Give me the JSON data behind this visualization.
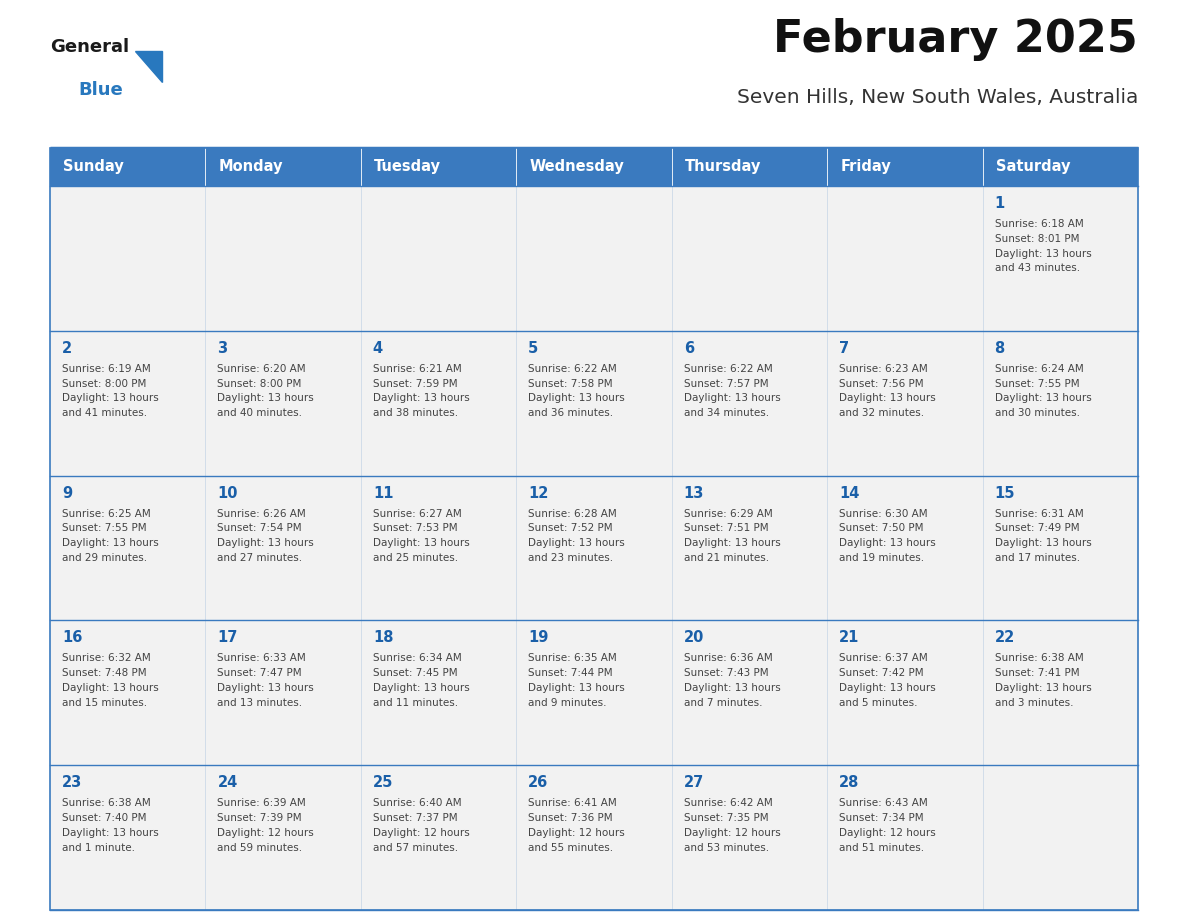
{
  "title": "February 2025",
  "subtitle": "Seven Hills, New South Wales, Australia",
  "days_of_week": [
    "Sunday",
    "Monday",
    "Tuesday",
    "Wednesday",
    "Thursday",
    "Friday",
    "Saturday"
  ],
  "header_bg": "#3a7abf",
  "header_text_color": "#ffffff",
  "cell_bg": "#f2f2f2",
  "cell_border_color": "#3a7abf",
  "title_color": "#111111",
  "subtitle_color": "#333333",
  "day_number_color": "#1a5fa8",
  "info_text_color": "#444444",
  "logo_general_color": "#1a1a1a",
  "logo_blue_color": "#2878be",
  "weeks": [
    [
      {
        "day": null,
        "info": ""
      },
      {
        "day": null,
        "info": ""
      },
      {
        "day": null,
        "info": ""
      },
      {
        "day": null,
        "info": ""
      },
      {
        "day": null,
        "info": ""
      },
      {
        "day": null,
        "info": ""
      },
      {
        "day": 1,
        "info": "Sunrise: 6:18 AM\nSunset: 8:01 PM\nDaylight: 13 hours\nand 43 minutes."
      }
    ],
    [
      {
        "day": 2,
        "info": "Sunrise: 6:19 AM\nSunset: 8:00 PM\nDaylight: 13 hours\nand 41 minutes."
      },
      {
        "day": 3,
        "info": "Sunrise: 6:20 AM\nSunset: 8:00 PM\nDaylight: 13 hours\nand 40 minutes."
      },
      {
        "day": 4,
        "info": "Sunrise: 6:21 AM\nSunset: 7:59 PM\nDaylight: 13 hours\nand 38 minutes."
      },
      {
        "day": 5,
        "info": "Sunrise: 6:22 AM\nSunset: 7:58 PM\nDaylight: 13 hours\nand 36 minutes."
      },
      {
        "day": 6,
        "info": "Sunrise: 6:22 AM\nSunset: 7:57 PM\nDaylight: 13 hours\nand 34 minutes."
      },
      {
        "day": 7,
        "info": "Sunrise: 6:23 AM\nSunset: 7:56 PM\nDaylight: 13 hours\nand 32 minutes."
      },
      {
        "day": 8,
        "info": "Sunrise: 6:24 AM\nSunset: 7:55 PM\nDaylight: 13 hours\nand 30 minutes."
      }
    ],
    [
      {
        "day": 9,
        "info": "Sunrise: 6:25 AM\nSunset: 7:55 PM\nDaylight: 13 hours\nand 29 minutes."
      },
      {
        "day": 10,
        "info": "Sunrise: 6:26 AM\nSunset: 7:54 PM\nDaylight: 13 hours\nand 27 minutes."
      },
      {
        "day": 11,
        "info": "Sunrise: 6:27 AM\nSunset: 7:53 PM\nDaylight: 13 hours\nand 25 minutes."
      },
      {
        "day": 12,
        "info": "Sunrise: 6:28 AM\nSunset: 7:52 PM\nDaylight: 13 hours\nand 23 minutes."
      },
      {
        "day": 13,
        "info": "Sunrise: 6:29 AM\nSunset: 7:51 PM\nDaylight: 13 hours\nand 21 minutes."
      },
      {
        "day": 14,
        "info": "Sunrise: 6:30 AM\nSunset: 7:50 PM\nDaylight: 13 hours\nand 19 minutes."
      },
      {
        "day": 15,
        "info": "Sunrise: 6:31 AM\nSunset: 7:49 PM\nDaylight: 13 hours\nand 17 minutes."
      }
    ],
    [
      {
        "day": 16,
        "info": "Sunrise: 6:32 AM\nSunset: 7:48 PM\nDaylight: 13 hours\nand 15 minutes."
      },
      {
        "day": 17,
        "info": "Sunrise: 6:33 AM\nSunset: 7:47 PM\nDaylight: 13 hours\nand 13 minutes."
      },
      {
        "day": 18,
        "info": "Sunrise: 6:34 AM\nSunset: 7:45 PM\nDaylight: 13 hours\nand 11 minutes."
      },
      {
        "day": 19,
        "info": "Sunrise: 6:35 AM\nSunset: 7:44 PM\nDaylight: 13 hours\nand 9 minutes."
      },
      {
        "day": 20,
        "info": "Sunrise: 6:36 AM\nSunset: 7:43 PM\nDaylight: 13 hours\nand 7 minutes."
      },
      {
        "day": 21,
        "info": "Sunrise: 6:37 AM\nSunset: 7:42 PM\nDaylight: 13 hours\nand 5 minutes."
      },
      {
        "day": 22,
        "info": "Sunrise: 6:38 AM\nSunset: 7:41 PM\nDaylight: 13 hours\nand 3 minutes."
      }
    ],
    [
      {
        "day": 23,
        "info": "Sunrise: 6:38 AM\nSunset: 7:40 PM\nDaylight: 13 hours\nand 1 minute."
      },
      {
        "day": 24,
        "info": "Sunrise: 6:39 AM\nSunset: 7:39 PM\nDaylight: 12 hours\nand 59 minutes."
      },
      {
        "day": 25,
        "info": "Sunrise: 6:40 AM\nSunset: 7:37 PM\nDaylight: 12 hours\nand 57 minutes."
      },
      {
        "day": 26,
        "info": "Sunrise: 6:41 AM\nSunset: 7:36 PM\nDaylight: 12 hours\nand 55 minutes."
      },
      {
        "day": 27,
        "info": "Sunrise: 6:42 AM\nSunset: 7:35 PM\nDaylight: 12 hours\nand 53 minutes."
      },
      {
        "day": 28,
        "info": "Sunrise: 6:43 AM\nSunset: 7:34 PM\nDaylight: 12 hours\nand 51 minutes."
      },
      {
        "day": null,
        "info": ""
      }
    ]
  ]
}
